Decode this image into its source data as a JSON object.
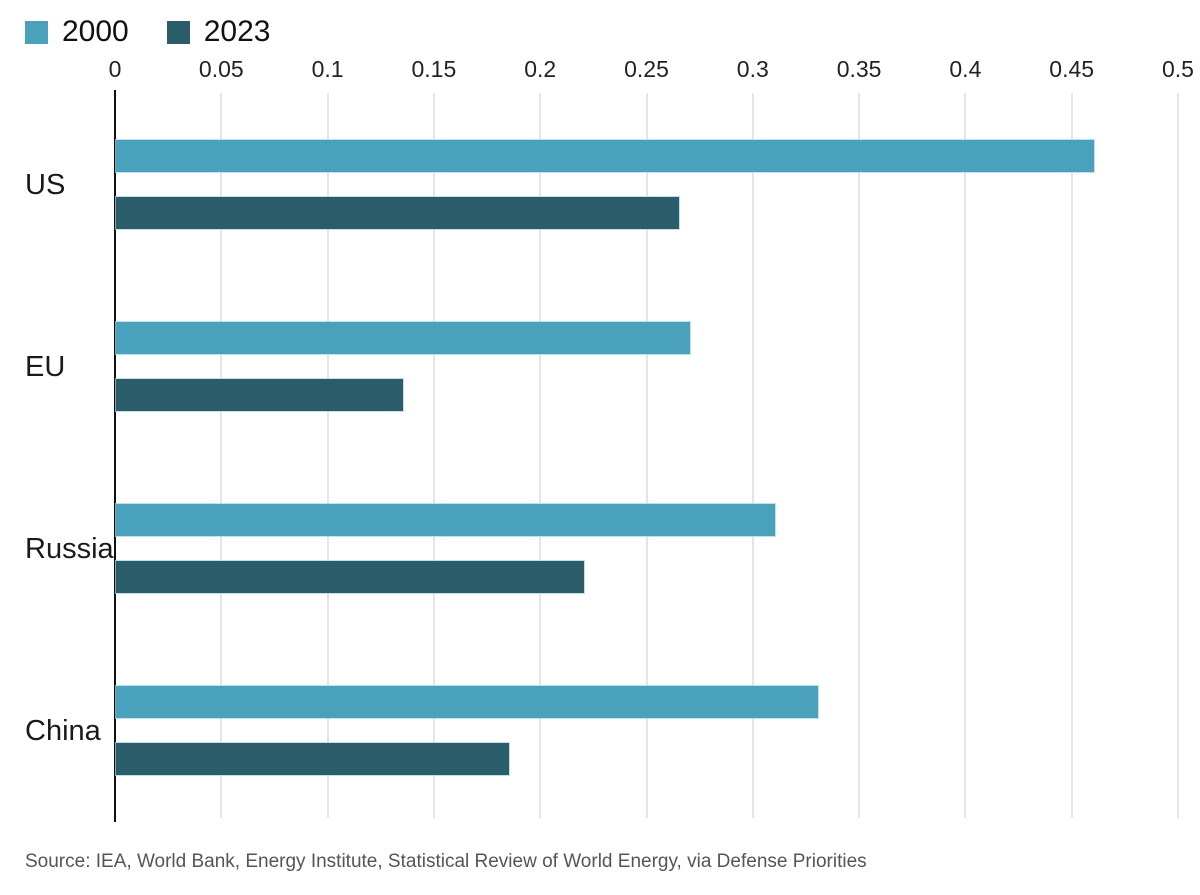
{
  "chart_data": {
    "type": "bar",
    "orientation": "horizontal",
    "categories": [
      "US",
      "EU",
      "Russia",
      "China"
    ],
    "series": [
      {
        "name": "2000",
        "color": "#4AA1BB",
        "values": [
          0.46,
          0.27,
          0.31,
          0.33
        ]
      },
      {
        "name": "2023",
        "color": "#2A5D69",
        "values": [
          0.265,
          0.135,
          0.22,
          0.185
        ]
      }
    ],
    "xlim": [
      0,
      0.5
    ],
    "xticks": [
      0,
      0.05,
      0.1,
      0.15,
      0.2,
      0.25,
      0.3,
      0.35,
      0.4,
      0.45,
      0.5
    ],
    "xtick_labels": [
      "0",
      "0.05",
      "0.1",
      "0.15",
      "0.2",
      "0.25",
      "0.3",
      "0.35",
      "0.4",
      "0.45",
      "0.5"
    ],
    "title": "",
    "xlabel": "",
    "ylabel": "",
    "grid": true,
    "legend_position": "top-left",
    "axis_color": "#111111",
    "gridline_color": "#e5e5e5",
    "source": "Source: IEA, World Bank, Energy Institute, Statistical Review of World Energy, via Defense Priorities"
  }
}
